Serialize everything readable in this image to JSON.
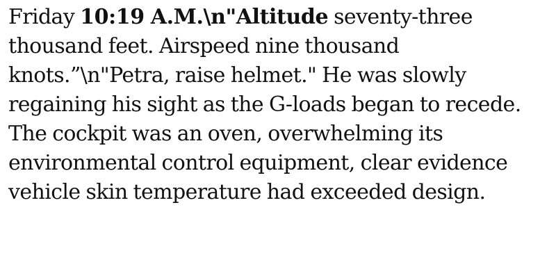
{
  "passage": {
    "lines": [
      {
        "pre": "Friday ",
        "bold": "10:19 A.M.\\n\"Altitude",
        "post": " seventy-three"
      },
      {
        "text": "thousand feet. Airspeed nine thousand"
      },
      {
        "text": "knots.”\\n\"Petra, raise helmet.\" He was slowly"
      },
      {
        "text": "regaining his sight as the G-loads began to recede."
      },
      {
        "text": "The cockpit was an oven, overwhelming its"
      },
      {
        "text": "environmental control equipment, clear evidence"
      },
      {
        "text": "vehicle skin temperature had exceeded design."
      }
    ]
  }
}
